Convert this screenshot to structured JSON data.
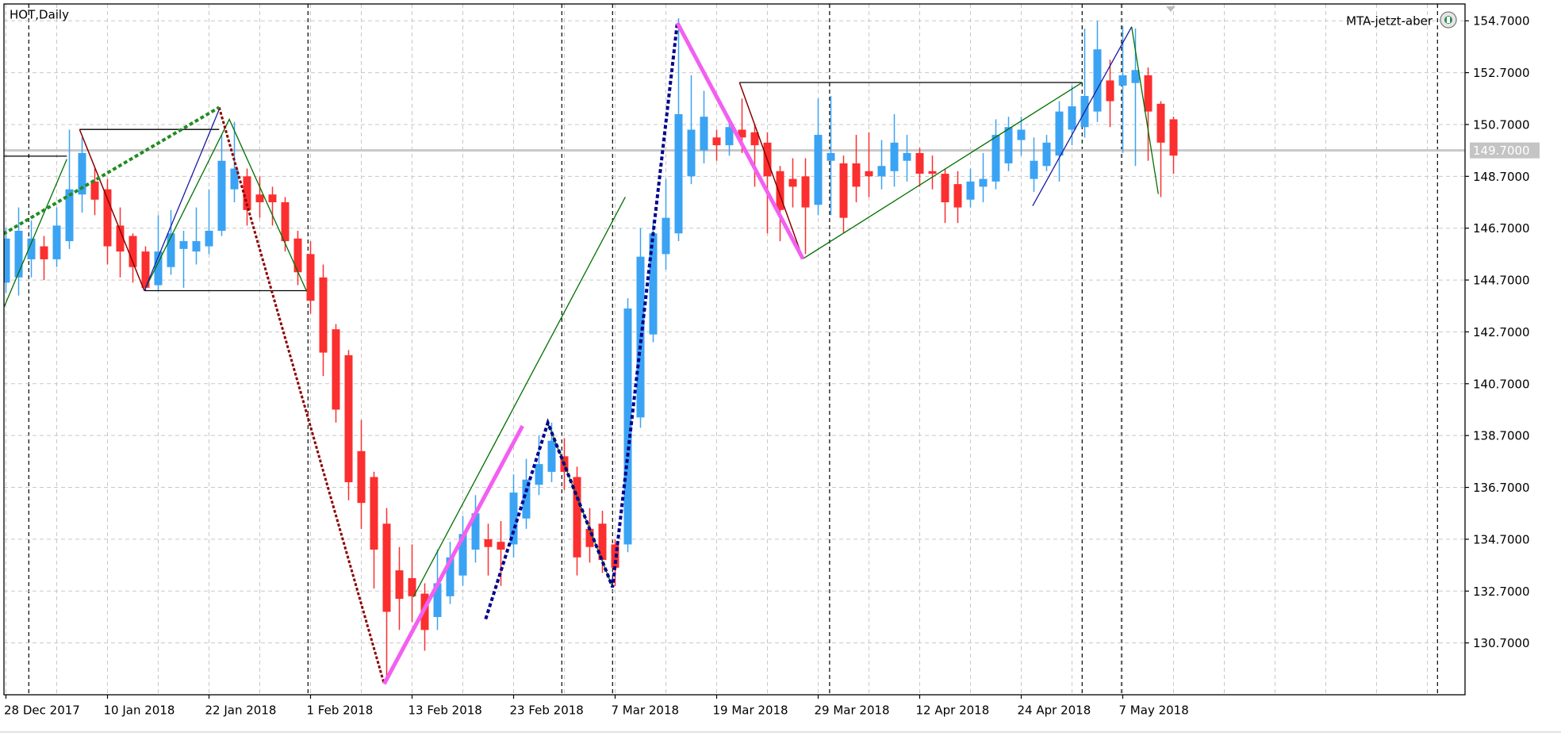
{
  "chart_data": {
    "type": "candlestick",
    "title": "HOT,Daily",
    "expert": "MTA-jetzt-aber",
    "up_color": "#3ba3f3",
    "down_color": "#fb2f2f",
    "ylim": [
      128.7,
      155.35
    ],
    "yticks": [
      {
        "value": 154.7,
        "label": "154.7000"
      },
      {
        "value": 152.7,
        "label": "152.7000"
      },
      {
        "value": 150.7,
        "label": "150.7000"
      },
      {
        "value": 148.7,
        "label": "148.7000"
      },
      {
        "value": 146.7,
        "label": "146.7000"
      },
      {
        "value": 144.7,
        "label": "144.7000"
      },
      {
        "value": 142.7,
        "label": "142.7000"
      },
      {
        "value": 140.7,
        "label": "140.7000"
      },
      {
        "value": 138.7,
        "label": "138.7000"
      },
      {
        "value": 136.7,
        "label": "136.7000"
      },
      {
        "value": 134.7,
        "label": "134.7000"
      },
      {
        "value": 132.7,
        "label": "132.7000"
      },
      {
        "value": 130.7,
        "label": "130.7000"
      }
    ],
    "grid": true,
    "current_price": {
      "value": 149.7,
      "label": "149.7000"
    },
    "categories": [
      "28 Dec 2017",
      null,
      null,
      null,
      null,
      null,
      null,
      null,
      "10 Jan 2018",
      null,
      null,
      null,
      null,
      null,
      null,
      null,
      "22 Jan 2018",
      null,
      null,
      null,
      null,
      null,
      null,
      null,
      "1 Feb 2018",
      null,
      null,
      null,
      null,
      null,
      null,
      null,
      "13 Feb 2018",
      null,
      null,
      null,
      null,
      null,
      null,
      null,
      "23 Feb 2018",
      null,
      null,
      null,
      null,
      null,
      null,
      null,
      "7 Mar 2018",
      null,
      null,
      null,
      null,
      null,
      null,
      null,
      "19 Mar 2018",
      null,
      null,
      null,
      null,
      null,
      null,
      null,
      "29 Mar 2018",
      null,
      null,
      null,
      null,
      null,
      null,
      null,
      "12 Apr 2018",
      null,
      null,
      null,
      null,
      null,
      null,
      null,
      "24 Apr 2018",
      null,
      null,
      null,
      null,
      null,
      null,
      null,
      "7 May 2018",
      null,
      null,
      null,
      null
    ],
    "open": [
      144.6,
      144.8,
      145.5,
      146,
      145.5,
      146.2,
      148,
      148.5,
      148.2,
      146.8,
      146.4,
      145.8,
      144.5,
      145.2,
      145.9,
      145.8,
      146,
      146.6,
      148.2,
      148.7,
      148,
      148,
      147.7,
      146.3,
      145.7,
      144.8,
      142.8,
      141.8,
      138.1,
      137.1,
      135.3,
      133.5,
      133.2,
      132.6,
      131.7,
      132.5,
      133.3,
      134.3,
      134.7,
      134.6,
      134.5,
      135.5,
      136.8,
      137.3,
      137.9,
      137.1,
      135.1,
      135.3,
      134.5,
      134.5,
      139.4,
      142.6,
      145.7,
      146.5,
      148.7,
      149.7,
      150.2,
      149.9,
      150.5,
      150.4,
      150,
      148.9,
      148.6,
      148.7,
      147.6,
      149.3,
      149.2,
      149.2,
      148.9,
      148.7,
      148.9,
      149.3,
      149.6,
      148.9,
      148.8,
      148.4,
      147.8,
      148.3,
      148.5,
      149.2,
      150.1,
      148.6,
      149.1,
      149.5,
      150.5,
      150.6,
      151.2,
      152.4,
      152.2,
      152.3,
      152.6,
      151.5,
      150.9
    ],
    "high": [
      146.7,
      147.5,
      147,
      146.4,
      147.5,
      150.5,
      150.2,
      149,
      148.6,
      147.5,
      146.5,
      146,
      147.2,
      147.4,
      146.6,
      147.5,
      148.2,
      150.3,
      150.8,
      149,
      148.7,
      148.3,
      147.9,
      146.6,
      146.2,
      145.3,
      143,
      142,
      139.3,
      137.3,
      135.9,
      134.4,
      134.5,
      133,
      134.3,
      134.6,
      135.6,
      136.4,
      135.3,
      135.4,
      137.2,
      137.8,
      138.7,
      139.2,
      138.6,
      137.5,
      135.9,
      135.8,
      134.7,
      144,
      146.7,
      147,
      148.6,
      154.8,
      152.6,
      152,
      150.5,
      151,
      151.7,
      150.7,
      150.4,
      149.1,
      149.4,
      149.4,
      151.7,
      151.8,
      149.5,
      150.3,
      150.4,
      150.1,
      151.1,
      150.3,
      149.8,
      149.5,
      149,
      148.9,
      149,
      149.6,
      150.9,
      151,
      151,
      150.2,
      150.3,
      151.6,
      152.2,
      154.4,
      154.7,
      153.2,
      154.5,
      154.4,
      152.9,
      151.6,
      151
    ],
    "low": [
      144.2,
      144.1,
      144.8,
      144.7,
      145.2,
      145.9,
      147.3,
      147.2,
      145.3,
      144.8,
      144.6,
      144.3,
      144.3,
      144.9,
      144.4,
      145.3,
      145.7,
      146.4,
      147.7,
      146.8,
      147.1,
      146.8,
      145.8,
      144.5,
      143.4,
      141,
      139.2,
      136.2,
      135.1,
      132.8,
      129.2,
      131.2,
      131.5,
      130.4,
      131.2,
      132.2,
      132.9,
      133.8,
      133.3,
      132.9,
      134,
      135.1,
      136.4,
      136.9,
      136.6,
      133.3,
      133.8,
      133.4,
      132.9,
      134.2,
      139,
      142.3,
      145.1,
      146.2,
      148.4,
      149.2,
      149.3,
      149.5,
      149.6,
      148.3,
      146.5,
      146.2,
      147.5,
      145.7,
      147.2,
      147.2,
      146.5,
      147.7,
      147.9,
      148.2,
      148.3,
      148.5,
      148.3,
      148.2,
      146.9,
      146.9,
      147.5,
      147.7,
      148.2,
      148.9,
      149.5,
      148.1,
      148.9,
      148.5,
      149.9,
      150.2,
      150.8,
      150.6,
      149.6,
      149.1,
      149.3,
      147.9,
      148.8
    ],
    "close": [
      146.3,
      146.6,
      146.3,
      145.5,
      146.8,
      148.2,
      149.6,
      147.8,
      146,
      145.8,
      145.2,
      144.4,
      145.8,
      146.5,
      146.2,
      146.2,
      146.6,
      149.3,
      149,
      147.4,
      147.7,
      147.7,
      146.2,
      145,
      143.9,
      141.9,
      139.7,
      136.9,
      136.1,
      134.3,
      131.9,
      132.4,
      132.5,
      131.2,
      133,
      134,
      134.9,
      135.7,
      134.4,
      134.3,
      136.5,
      137,
      137.6,
      138.5,
      137.3,
      134,
      134.4,
      133.9,
      133.6,
      143.6,
      145.6,
      146.5,
      147.1,
      151.1,
      150.5,
      151,
      149.9,
      150.6,
      150.2,
      149.9,
      148.7,
      147.4,
      148.3,
      147.5,
      150.3,
      149.6,
      147.1,
      148.3,
      148.7,
      149.1,
      150,
      149.6,
      148.8,
      148.8,
      147.7,
      147.5,
      148.5,
      148.6,
      150.3,
      150.6,
      150.5,
      149.3,
      150,
      151.2,
      151.4,
      151.8,
      153.6,
      151.6,
      152.6,
      152.8,
      151.2,
      150,
      149.5
    ],
    "overlays": [
      {
        "color": "#000000",
        "width": 1.3,
        "dash": false,
        "points": [
          [
            5.8,
            150.51
          ],
          [
            16.8,
            150.51
          ]
        ]
      },
      {
        "color": "#000000",
        "width": 1.3,
        "dash": false,
        "points": [
          [
            10.9,
            144.29
          ],
          [
            23.7,
            144.29
          ]
        ]
      },
      {
        "color": "#000000",
        "width": 1.3,
        "dash": false,
        "points": [
          [
            -0.3,
            149.48
          ],
          [
            4.8,
            149.48
          ]
        ]
      },
      {
        "color": "#000000",
        "width": 1.3,
        "dash": false,
        "points": [
          [
            57.8,
            152.32
          ],
          [
            84.8,
            152.32
          ]
        ]
      },
      {
        "color": "#007000",
        "width": 1.3,
        "dash": false,
        "points": [
          [
            -0.2,
            143.6
          ],
          [
            4.8,
            149.36
          ]
        ]
      },
      {
        "color": "#007000",
        "width": 1.3,
        "dash": false,
        "points": [
          [
            10.9,
            144.29
          ],
          [
            17.6,
            150.9
          ],
          [
            23.7,
            144.26
          ]
        ]
      },
      {
        "color": "#007000",
        "width": 1.3,
        "dash": false,
        "points": [
          [
            32.1,
            132.47
          ],
          [
            48.8,
            147.9
          ]
        ]
      },
      {
        "color": "#007000",
        "width": 1.3,
        "dash": false,
        "points": [
          [
            42.7,
            139.19
          ],
          [
            47.8,
            132.85
          ]
        ]
      },
      {
        "color": "#007000",
        "width": 1.3,
        "dash": false,
        "points": [
          [
            62.8,
            145.52
          ],
          [
            84.8,
            152.32
          ]
        ]
      },
      {
        "color": "#007000",
        "width": 1.3,
        "dash": false,
        "points": [
          [
            88.7,
            154.47
          ],
          [
            90.8,
            148.02
          ]
        ]
      },
      {
        "color": "#1a1aa0",
        "width": 1.3,
        "dash": false,
        "points": [
          [
            10.9,
            144.29
          ],
          [
            16.8,
            151.28
          ]
        ]
      },
      {
        "color": "#1a1aa0",
        "width": 1.3,
        "dash": false,
        "points": [
          [
            80.9,
            147.56
          ],
          [
            88.7,
            154.47
          ]
        ]
      },
      {
        "color": "#8b0000",
        "width": 1.5,
        "dash": false,
        "points": [
          [
            5.8,
            150.51
          ],
          [
            10.9,
            144.29
          ]
        ]
      },
      {
        "color": "#8b0000",
        "width": 1.5,
        "dash": false,
        "points": [
          [
            57.8,
            152.32
          ],
          [
            62.8,
            145.52
          ]
        ]
      },
      {
        "color": "#8b0000",
        "width": 3,
        "dash": true,
        "points": [
          [
            16.8,
            151.36
          ],
          [
            29.8,
            129.12
          ]
        ]
      },
      {
        "color": "#228b22",
        "width": 4,
        "dash": true,
        "points": [
          [
            -0.2,
            146.48
          ],
          [
            16.8,
            151.36
          ]
        ]
      },
      {
        "color": "#00008b",
        "width": 4,
        "dash": true,
        "points": [
          [
            37.8,
            131.62
          ],
          [
            42.7,
            139.19
          ],
          [
            47.8,
            132.85
          ],
          [
            52.9,
            154.62
          ]
        ]
      },
      {
        "color": "#f35ff0",
        "width": 5,
        "dash": false,
        "points": [
          [
            29.8,
            129.12
          ],
          [
            40.7,
            139.07
          ]
        ]
      },
      {
        "color": "#f35ff0",
        "width": 5,
        "dash": false,
        "points": [
          [
            52.9,
            154.62
          ],
          [
            62.8,
            145.52
          ]
        ]
      }
    ]
  }
}
